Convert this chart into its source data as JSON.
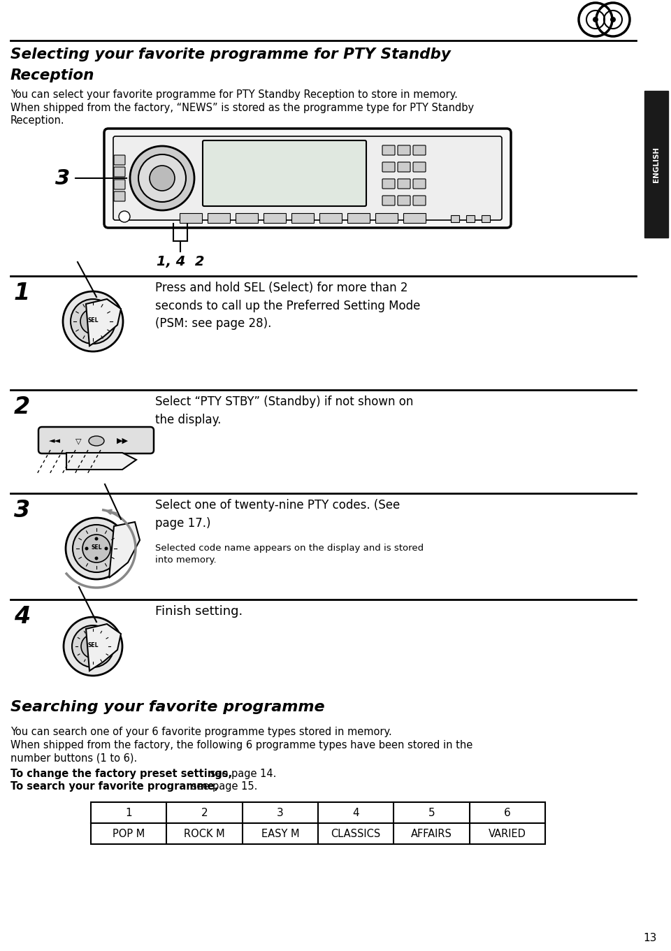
{
  "title_line1": "Selecting your favorite programme for PTY Standby",
  "title_line2": "Reception",
  "intro_line1": "You can select your favorite programme for PTY Standby Reception to store in memory.",
  "intro_line2": "When shipped from the factory, “NEWS” is stored as the programme type for PTY Standby",
  "intro_line3": "Reception.",
  "label_3": "3",
  "label_142": "1, 4  2",
  "step1_num": "1",
  "step1_text": "Press and hold SEL (Select) for more than 2\nseconds to call up the Preferred Setting Mode\n(PSM: see page 28).",
  "step2_num": "2",
  "step2_text": "Select “PTY STBY” (Standby) if not shown on\nthe display.",
  "step3_num": "3",
  "step3_text": "Select one of twenty-nine PTY codes. (See\npage 17.)",
  "step3_subtext": "Selected code name appears on the display and is stored\ninto memory.",
  "step4_num": "4",
  "step4_text": "Finish setting.",
  "sec2_title": "Searching your favorite programme",
  "sec2_line1": "You can search one of your 6 favorite programme types stored in memory.",
  "sec2_line2": "When shipped from the factory, the following 6 programme types have been stored in the",
  "sec2_line3": "number buttons (1 to 6).",
  "sec2_bold1": "To change the factory preset settings,",
  "sec2_norm1": " see page 14.",
  "sec2_bold2": "To search your favorite programme,",
  "sec2_norm2": " see page 15.",
  "table_headers": [
    "1",
    "2",
    "3",
    "4",
    "5",
    "6"
  ],
  "table_values": [
    "POP M",
    "ROCK M",
    "EASY M",
    "CLASSICS",
    "AFFAIRS",
    "VARIED"
  ],
  "english_tab": "ENGLISH",
  "page_num": "13",
  "bg_color": "#ffffff",
  "text_color": "#000000"
}
